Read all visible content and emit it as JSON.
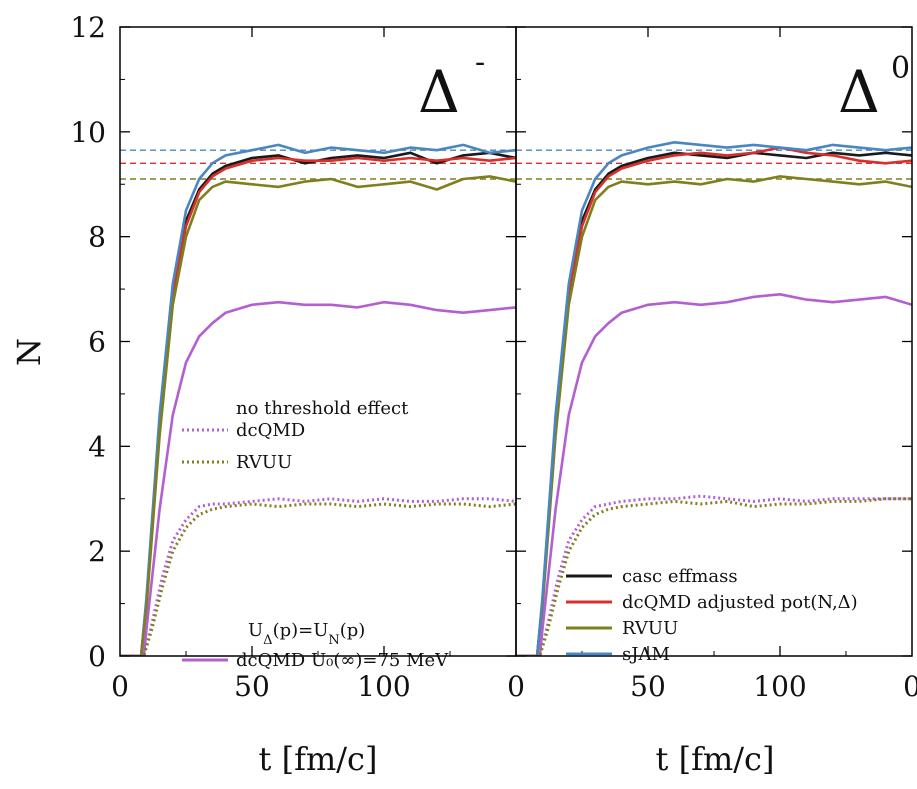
{
  "chart_data": [
    {
      "type": "line",
      "panel_label": "Δ",
      "panel_label_sup": "-",
      "xlabel": "t [fm/c]",
      "ylabel": "N",
      "xlim": [
        0,
        150
      ],
      "ylim": [
        0,
        12
      ],
      "xticks": [
        "0",
        "50",
        "100"
      ],
      "yticks": [
        "0",
        "2",
        "4",
        "6",
        "8",
        "10",
        "12"
      ],
      "reference_lines": [
        {
          "y": 9.65,
          "color": "#4a86c0"
        },
        {
          "y": 9.4,
          "color": "#d7302c"
        },
        {
          "y": 9.1,
          "color": "#7f7f1e"
        }
      ],
      "series": [
        {
          "name": "",
          "color": "#1a1a1a",
          "style": "solid",
          "x": [
            0,
            8,
            10,
            15,
            20,
            25,
            30,
            35,
            40,
            50,
            60,
            70,
            80,
            90,
            100,
            110,
            120,
            130,
            140,
            150
          ],
          "y": [
            0,
            0,
            1.0,
            4.5,
            7.0,
            8.3,
            8.9,
            9.2,
            9.35,
            9.5,
            9.55,
            9.4,
            9.5,
            9.55,
            9.5,
            9.6,
            9.4,
            9.55,
            9.6,
            9.5
          ]
        },
        {
          "name": "",
          "color": "#d7302c",
          "style": "solid",
          "x": [
            0,
            8,
            10,
            15,
            20,
            25,
            30,
            35,
            40,
            50,
            60,
            70,
            80,
            90,
            100,
            110,
            120,
            130,
            140,
            150
          ],
          "y": [
            0,
            0,
            1.0,
            4.4,
            6.9,
            8.2,
            8.85,
            9.15,
            9.3,
            9.45,
            9.5,
            9.45,
            9.45,
            9.5,
            9.45,
            9.5,
            9.45,
            9.5,
            9.45,
            9.5
          ]
        },
        {
          "name": "",
          "color": "#4a86c0",
          "style": "solid",
          "x": [
            0,
            8,
            10,
            15,
            20,
            25,
            30,
            35,
            40,
            50,
            60,
            70,
            80,
            90,
            100,
            110,
            120,
            130,
            140,
            150
          ],
          "y": [
            0,
            0,
            1.1,
            4.6,
            7.1,
            8.5,
            9.1,
            9.4,
            9.55,
            9.65,
            9.75,
            9.6,
            9.7,
            9.65,
            9.6,
            9.7,
            9.65,
            9.75,
            9.6,
            9.65
          ]
        },
        {
          "name": "",
          "color": "#7f7f1e",
          "style": "solid",
          "x": [
            0,
            8,
            10,
            15,
            20,
            25,
            30,
            35,
            40,
            50,
            60,
            70,
            80,
            90,
            100,
            110,
            120,
            130,
            140,
            150
          ],
          "y": [
            0,
            0,
            0.9,
            4.2,
            6.7,
            8.0,
            8.7,
            8.95,
            9.05,
            9.0,
            8.95,
            9.05,
            9.1,
            8.95,
            9.0,
            9.05,
            8.9,
            9.1,
            9.15,
            9.05
          ]
        },
        {
          "name": "dcQMD U₀(∞)=75 MeV",
          "color": "#b45fd0",
          "style": "solid",
          "x": [
            0,
            9,
            10,
            15,
            20,
            25,
            30,
            35,
            40,
            50,
            60,
            70,
            80,
            90,
            100,
            110,
            120,
            130,
            140,
            150
          ],
          "y": [
            0,
            0,
            0.5,
            2.8,
            4.6,
            5.6,
            6.1,
            6.35,
            6.55,
            6.7,
            6.75,
            6.7,
            6.7,
            6.65,
            6.75,
            6.7,
            6.6,
            6.55,
            6.6,
            6.65
          ]
        },
        {
          "name": "dcQMD",
          "color": "#b45fd0",
          "style": "dotted",
          "x": [
            0,
            9,
            12,
            16,
            20,
            25,
            30,
            35,
            40,
            50,
            60,
            70,
            80,
            90,
            100,
            110,
            120,
            130,
            140,
            150
          ],
          "y": [
            0,
            0,
            0.6,
            1.5,
            2.2,
            2.6,
            2.85,
            2.9,
            2.9,
            2.95,
            3.0,
            2.95,
            3.0,
            2.95,
            3.0,
            2.95,
            2.95,
            3.0,
            3.0,
            2.95
          ]
        },
        {
          "name": "RVUU",
          "color": "#7f7f1e",
          "style": "dotted",
          "x": [
            0,
            9,
            12,
            16,
            20,
            25,
            30,
            35,
            40,
            50,
            60,
            70,
            80,
            90,
            100,
            110,
            120,
            130,
            140,
            150
          ],
          "y": [
            0,
            0,
            0.5,
            1.3,
            2.0,
            2.45,
            2.7,
            2.8,
            2.85,
            2.9,
            2.85,
            2.9,
            2.9,
            2.85,
            2.9,
            2.85,
            2.9,
            2.9,
            2.85,
            2.9
          ]
        }
      ],
      "legend_groups": [
        {
          "header": "no threshold effect",
          "entries": [
            {
              "label": "dcQMD",
              "color": "#b45fd0",
              "style": "dotted"
            },
            {
              "label": "RVUU",
              "color": "#7f7f1e",
              "style": "dotted"
            }
          ]
        },
        {
          "header": "U_Δ(p)=U_N(p)",
          "entries": [
            {
              "label": "dcQMD U₀(∞)=75 MeV",
              "color": "#b45fd0",
              "style": "solid"
            }
          ]
        }
      ]
    },
    {
      "type": "line",
      "panel_label": "Δ",
      "panel_label_sup": "0",
      "xlabel": "t [fm/c]",
      "ylabel": "N",
      "xlim": [
        0,
        150
      ],
      "ylim": [
        0,
        12
      ],
      "xticks": [
        "0",
        "50",
        "100",
        "0"
      ],
      "reference_lines": [
        {
          "y": 9.65,
          "color": "#4a86c0"
        },
        {
          "y": 9.4,
          "color": "#d7302c"
        },
        {
          "y": 9.1,
          "color": "#7f7f1e"
        }
      ],
      "series": [
        {
          "name": "casc effmass",
          "color": "#1a1a1a",
          "style": "solid",
          "x": [
            0,
            8,
            10,
            15,
            20,
            25,
            30,
            35,
            40,
            50,
            60,
            70,
            80,
            90,
            100,
            110,
            120,
            130,
            140,
            150
          ],
          "y": [
            0,
            0,
            1.0,
            4.5,
            7.0,
            8.3,
            8.9,
            9.2,
            9.35,
            9.5,
            9.6,
            9.55,
            9.5,
            9.6,
            9.55,
            9.5,
            9.6,
            9.55,
            9.6,
            9.55
          ]
        },
        {
          "name": "dcQMD adjusted pot(N,Δ)",
          "color": "#d7302c",
          "style": "solid",
          "x": [
            0,
            8,
            10,
            15,
            20,
            25,
            30,
            35,
            40,
            50,
            60,
            70,
            80,
            90,
            100,
            110,
            120,
            130,
            140,
            150
          ],
          "y": [
            0,
            0,
            1.0,
            4.4,
            6.9,
            8.2,
            8.85,
            9.15,
            9.3,
            9.45,
            9.55,
            9.6,
            9.55,
            9.6,
            9.7,
            9.6,
            9.55,
            9.45,
            9.4,
            9.45
          ]
        },
        {
          "name": "RVUU",
          "color": "#7f7f1e",
          "style": "solid",
          "x": [
            0,
            8,
            10,
            15,
            20,
            25,
            30,
            35,
            40,
            50,
            60,
            70,
            80,
            90,
            100,
            110,
            120,
            130,
            140,
            150
          ],
          "y": [
            0,
            0,
            0.9,
            4.2,
            6.7,
            8.0,
            8.7,
            8.95,
            9.05,
            9.0,
            9.05,
            9.0,
            9.1,
            9.05,
            9.15,
            9.1,
            9.05,
            9.0,
            9.05,
            8.95
          ]
        },
        {
          "name": "sJAM",
          "color": "#4a86c0",
          "style": "solid",
          "x": [
            0,
            8,
            10,
            15,
            20,
            25,
            30,
            35,
            40,
            50,
            60,
            70,
            80,
            90,
            100,
            110,
            120,
            130,
            140,
            150
          ],
          "y": [
            0,
            0,
            1.1,
            4.6,
            7.1,
            8.5,
            9.1,
            9.4,
            9.55,
            9.7,
            9.8,
            9.75,
            9.7,
            9.75,
            9.7,
            9.65,
            9.75,
            9.7,
            9.65,
            9.7
          ]
        },
        {
          "name": "",
          "color": "#b45fd0",
          "style": "solid",
          "x": [
            0,
            9,
            10,
            15,
            20,
            25,
            30,
            35,
            40,
            50,
            60,
            70,
            80,
            90,
            100,
            110,
            120,
            130,
            140,
            150
          ],
          "y": [
            0,
            0,
            0.5,
            2.8,
            4.6,
            5.6,
            6.1,
            6.35,
            6.55,
            6.7,
            6.75,
            6.7,
            6.75,
            6.85,
            6.9,
            6.8,
            6.75,
            6.8,
            6.85,
            6.7
          ]
        },
        {
          "name": "",
          "color": "#b45fd0",
          "style": "dotted",
          "x": [
            0,
            9,
            12,
            16,
            20,
            25,
            30,
            35,
            40,
            50,
            60,
            70,
            80,
            90,
            100,
            110,
            120,
            130,
            140,
            150
          ],
          "y": [
            0,
            0,
            0.6,
            1.5,
            2.2,
            2.6,
            2.85,
            2.9,
            2.95,
            3.0,
            3.0,
            3.05,
            3.0,
            2.95,
            3.0,
            2.95,
            3.0,
            3.0,
            3.0,
            3.0
          ]
        },
        {
          "name": "",
          "color": "#7f7f1e",
          "style": "dotted",
          "x": [
            0,
            9,
            12,
            16,
            20,
            25,
            30,
            35,
            40,
            50,
            60,
            70,
            80,
            90,
            100,
            110,
            120,
            130,
            140,
            150
          ],
          "y": [
            0,
            0,
            0.5,
            1.3,
            2.0,
            2.45,
            2.7,
            2.8,
            2.85,
            2.9,
            2.95,
            2.9,
            2.95,
            2.85,
            2.9,
            2.9,
            2.95,
            2.95,
            3.0,
            3.0
          ]
        }
      ],
      "legend_groups": [
        {
          "header": "",
          "entries": [
            {
              "label": "casc effmass",
              "color": "#1a1a1a",
              "style": "solid"
            },
            {
              "label": "dcQMD adjusted pot(N,Δ)",
              "color": "#d7302c",
              "style": "solid"
            },
            {
              "label": "RVUU",
              "color": "#7f7f1e",
              "style": "solid"
            },
            {
              "label": "sJAM",
              "color": "#4a86c0",
              "style": "solid"
            }
          ]
        }
      ]
    }
  ]
}
